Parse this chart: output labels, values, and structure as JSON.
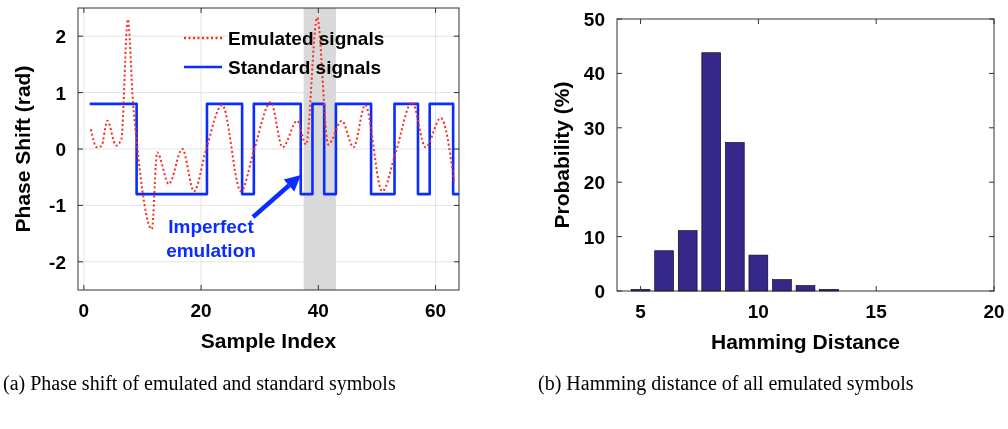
{
  "chart_data": [
    {
      "type": "line",
      "xlabel": "Sample Index",
      "ylabel": "Phase Shift (rad)",
      "xlim": [
        -1,
        64
      ],
      "ylim": [
        -2.5,
        2.5
      ],
      "xticks": [
        0,
        20,
        40,
        60
      ],
      "yticks": [
        -2,
        -1,
        0,
        1,
        2
      ],
      "grid": true,
      "legend": "top right",
      "bands": [
        {
          "axis": "x",
          "from": 37.5,
          "to": 43,
          "color": "#d9d9d9"
        }
      ],
      "series": [
        {
          "name": "Emulated signals",
          "type": "line",
          "line_style": "dotted",
          "color": "#ff2a1a",
          "x": [
            1.2,
            2.2,
            3,
            4,
            5.5,
            6.4,
            7.5,
            8.4,
            9,
            11.6,
            12.5,
            14.5,
            16.8,
            18.8,
            20.8,
            23.6,
            26.8,
            29,
            31.9,
            33.9,
            36.4,
            37.9,
            39.8,
            41.7,
            44,
            46,
            48,
            50.9,
            53.2,
            56,
            58.3,
            60.9,
            63.2
          ],
          "values": [
            0.35,
            0.03,
            0.05,
            0.5,
            0.06,
            0.18,
            2.3,
            0.8,
            0.15,
            -1.42,
            -0.06,
            -0.62,
            0,
            -0.75,
            -0.03,
            0.78,
            -0.75,
            -0.03,
            0.83,
            0.03,
            0.5,
            0.08,
            2.33,
            0.08,
            0.5,
            0.03,
            0.78,
            -0.75,
            -0.06,
            0.83,
            0.03,
            0.55,
            -0.6
          ]
        },
        {
          "name": "Standard signals",
          "type": "step",
          "line_style": "solid",
          "color": "#0a2cff",
          "x": [
            1,
            9,
            21,
            27,
            29,
            37,
            39,
            41,
            43,
            49,
            53,
            57,
            59,
            63,
            64
          ],
          "values": [
            0.8,
            -0.8,
            0.8,
            -0.8,
            0.8,
            -0.8,
            0.8,
            -0.8,
            0.8,
            -0.8,
            0.8,
            -0.8,
            0.8,
            -0.8,
            -0.8
          ]
        }
      ],
      "annotations": [
        "Imperfect emulation",
        "(a) Phase shift of emulated and standard symbols"
      ]
    },
    {
      "type": "bar",
      "xlabel": "Hamming Distance",
      "ylabel": "Probability (%)",
      "xlim": [
        4,
        20
      ],
      "ylim": [
        0,
        50
      ],
      "xticks": [
        5,
        10,
        15,
        20
      ],
      "yticks": [
        0,
        10,
        20,
        30,
        40,
        50
      ],
      "grid": false,
      "color": "#35288a",
      "x": [
        5,
        6,
        7,
        8,
        9,
        10,
        11,
        12,
        13
      ],
      "values": [
        0.3,
        7.4,
        11.1,
        43.8,
        27.3,
        6.6,
        2.1,
        1.0,
        0.3
      ],
      "annotations": [
        "(b) Hamming distance of all emulated symbols"
      ]
    }
  ]
}
